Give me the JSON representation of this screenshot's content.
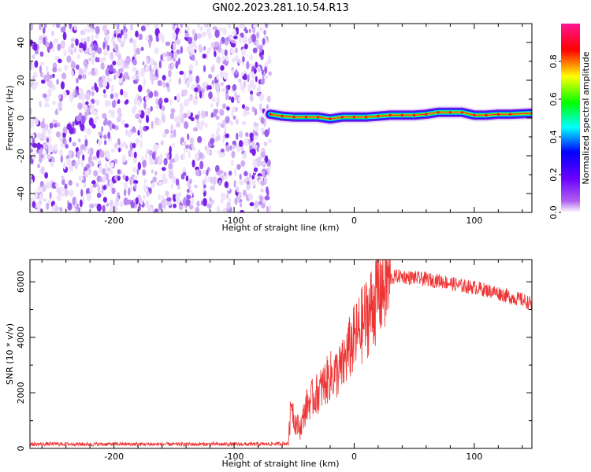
{
  "title": "GN02.2023.281.10.54.R13",
  "chart_data": [
    {
      "type": "heatmap",
      "xlabel": "Height of straight line (km)",
      "ylabel": "Frequency (Hz)",
      "xlim": [
        -270,
        148
      ],
      "ylim": [
        -50,
        50
      ],
      "xticks": [
        -200,
        -100,
        0,
        100
      ],
      "yticks": [
        -40,
        -20,
        0,
        20,
        40
      ],
      "noise_region_x": [
        -270,
        -70
      ],
      "carrier_track": {
        "x": [
          -70,
          -60,
          -50,
          -40,
          -30,
          -20,
          -10,
          0,
          10,
          20,
          30,
          40,
          50,
          60,
          70,
          80,
          90,
          100,
          110,
          120,
          130,
          148
        ],
        "y": [
          2,
          1,
          0.5,
          0.5,
          0.5,
          -0.5,
          0.5,
          0.5,
          0.5,
          1,
          1.5,
          1.5,
          1.5,
          2,
          3,
          3,
          3,
          1.5,
          1.5,
          2,
          2,
          2.5
        ]
      },
      "colorbar": {
        "label": "Normalized spectral amplitude",
        "range": [
          0,
          1
        ],
        "ticks": [
          "0.0",
          "0.2",
          "0.4",
          "0.6",
          "0.8"
        ],
        "colors": [
          "#ffffff",
          "#a020f0",
          "#0000ff",
          "#00ffff",
          "#00ff00",
          "#ffff00",
          "#ff0000",
          "#ff1493"
        ]
      },
      "grid": false
    },
    {
      "type": "line",
      "xlabel": "Height of straight line (km)",
      "ylabel": "SNR (10 * v/v)",
      "xlim": [
        -270,
        148
      ],
      "ylim": [
        0,
        6800
      ],
      "xticks": [
        -200,
        -100,
        0,
        100
      ],
      "yticks": [
        0,
        2000,
        4000,
        6000
      ],
      "color": "#ee3333",
      "series": [
        {
          "x": [
            -270,
            -250,
            -220,
            -200,
            -170,
            -140,
            -110,
            -80,
            -60,
            -55,
            -52,
            -50,
            -48,
            -45,
            -40,
            -35,
            -30,
            -25,
            -20,
            -15,
            -10,
            -5,
            0,
            5,
            10,
            15,
            20,
            25,
            30,
            35,
            40,
            45,
            50,
            55,
            60,
            65,
            70,
            80,
            90,
            100,
            110,
            120,
            130,
            140,
            148
          ],
          "values": [
            150,
            160,
            150,
            155,
            150,
            150,
            150,
            150,
            170,
            180,
            1800,
            1000,
            900,
            700,
            1500,
            1800,
            2000,
            2300,
            2600,
            2700,
            2900,
            3500,
            3900,
            4300,
            4700,
            5100,
            5600,
            5900,
            6100,
            6200,
            6200,
            6150,
            6150,
            6100,
            6100,
            6050,
            6050,
            5950,
            5850,
            5800,
            5700,
            5600,
            5450,
            5350,
            5200
          ]
        }
      ],
      "grid": false
    }
  ]
}
